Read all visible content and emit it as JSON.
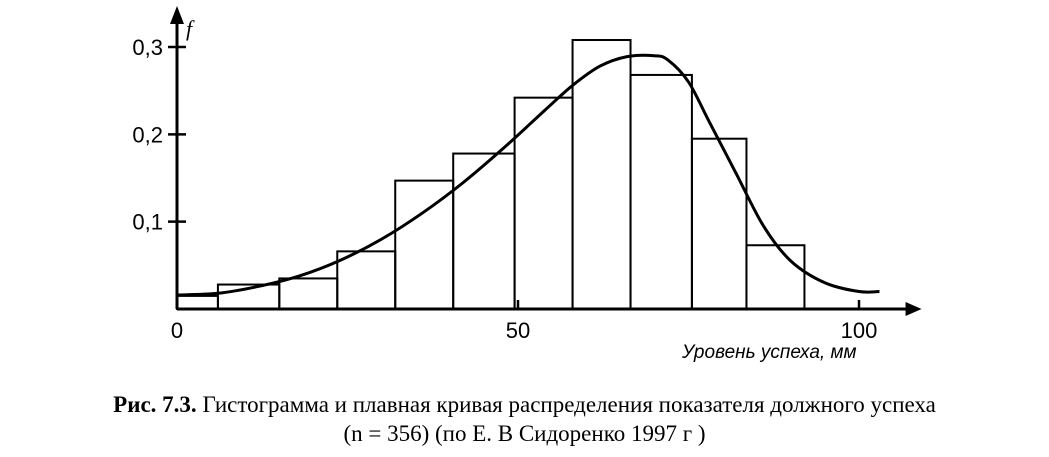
{
  "chart_data": {
    "type": "bar",
    "y_axis_symbol": "f",
    "xlabel": "Уровень успеха, мм",
    "x_ticks": [
      {
        "value": 0,
        "label": "0"
      },
      {
        "value": 50,
        "label": "50"
      },
      {
        "value": 100,
        "label": "100"
      }
    ],
    "y_ticks": [
      {
        "value": 0.1,
        "label": "0,1"
      },
      {
        "value": 0.2,
        "label": "0,2"
      },
      {
        "value": 0.3,
        "label": "0,3"
      }
    ],
    "xlim": [
      0,
      108
    ],
    "ylim": [
      0,
      0.34
    ],
    "bins": [
      {
        "x0": 0,
        "x1": 6,
        "value": 0.015
      },
      {
        "x0": 6,
        "x1": 15,
        "value": 0.028
      },
      {
        "x0": 15,
        "x1": 23.5,
        "value": 0.035
      },
      {
        "x0": 23.5,
        "x1": 32,
        "value": 0.066
      },
      {
        "x0": 32,
        "x1": 40.5,
        "value": 0.147
      },
      {
        "x0": 40.5,
        "x1": 49.5,
        "value": 0.178
      },
      {
        "x0": 49.5,
        "x1": 58,
        "value": 0.242
      },
      {
        "x0": 58,
        "x1": 66.5,
        "value": 0.308
      },
      {
        "x0": 66.5,
        "x1": 75.5,
        "value": 0.268
      },
      {
        "x0": 75.5,
        "x1": 83.5,
        "value": 0.195
      },
      {
        "x0": 83.5,
        "x1": 92,
        "value": 0.073
      }
    ],
    "curve": [
      [
        0,
        0.016
      ],
      [
        6,
        0.018
      ],
      [
        12,
        0.026
      ],
      [
        18,
        0.038
      ],
      [
        24,
        0.056
      ],
      [
        30,
        0.08
      ],
      [
        36,
        0.11
      ],
      [
        42,
        0.145
      ],
      [
        48,
        0.185
      ],
      [
        54,
        0.228
      ],
      [
        58,
        0.256
      ],
      [
        62,
        0.278
      ],
      [
        66,
        0.289
      ],
      [
        70,
        0.29
      ],
      [
        72,
        0.285
      ],
      [
        75,
        0.26
      ],
      [
        78,
        0.215
      ],
      [
        82,
        0.155
      ],
      [
        86,
        0.095
      ],
      [
        90,
        0.055
      ],
      [
        95,
        0.03
      ],
      [
        100,
        0.02
      ],
      [
        103,
        0.02
      ]
    ]
  },
  "caption": {
    "label": "Рис. 7.3.",
    "line1": " Гистограмма и плавная кривая распределения показателя должного успеха",
    "line2": "(n = 356) (по Е. В  Сидоренко 1997 г )"
  }
}
